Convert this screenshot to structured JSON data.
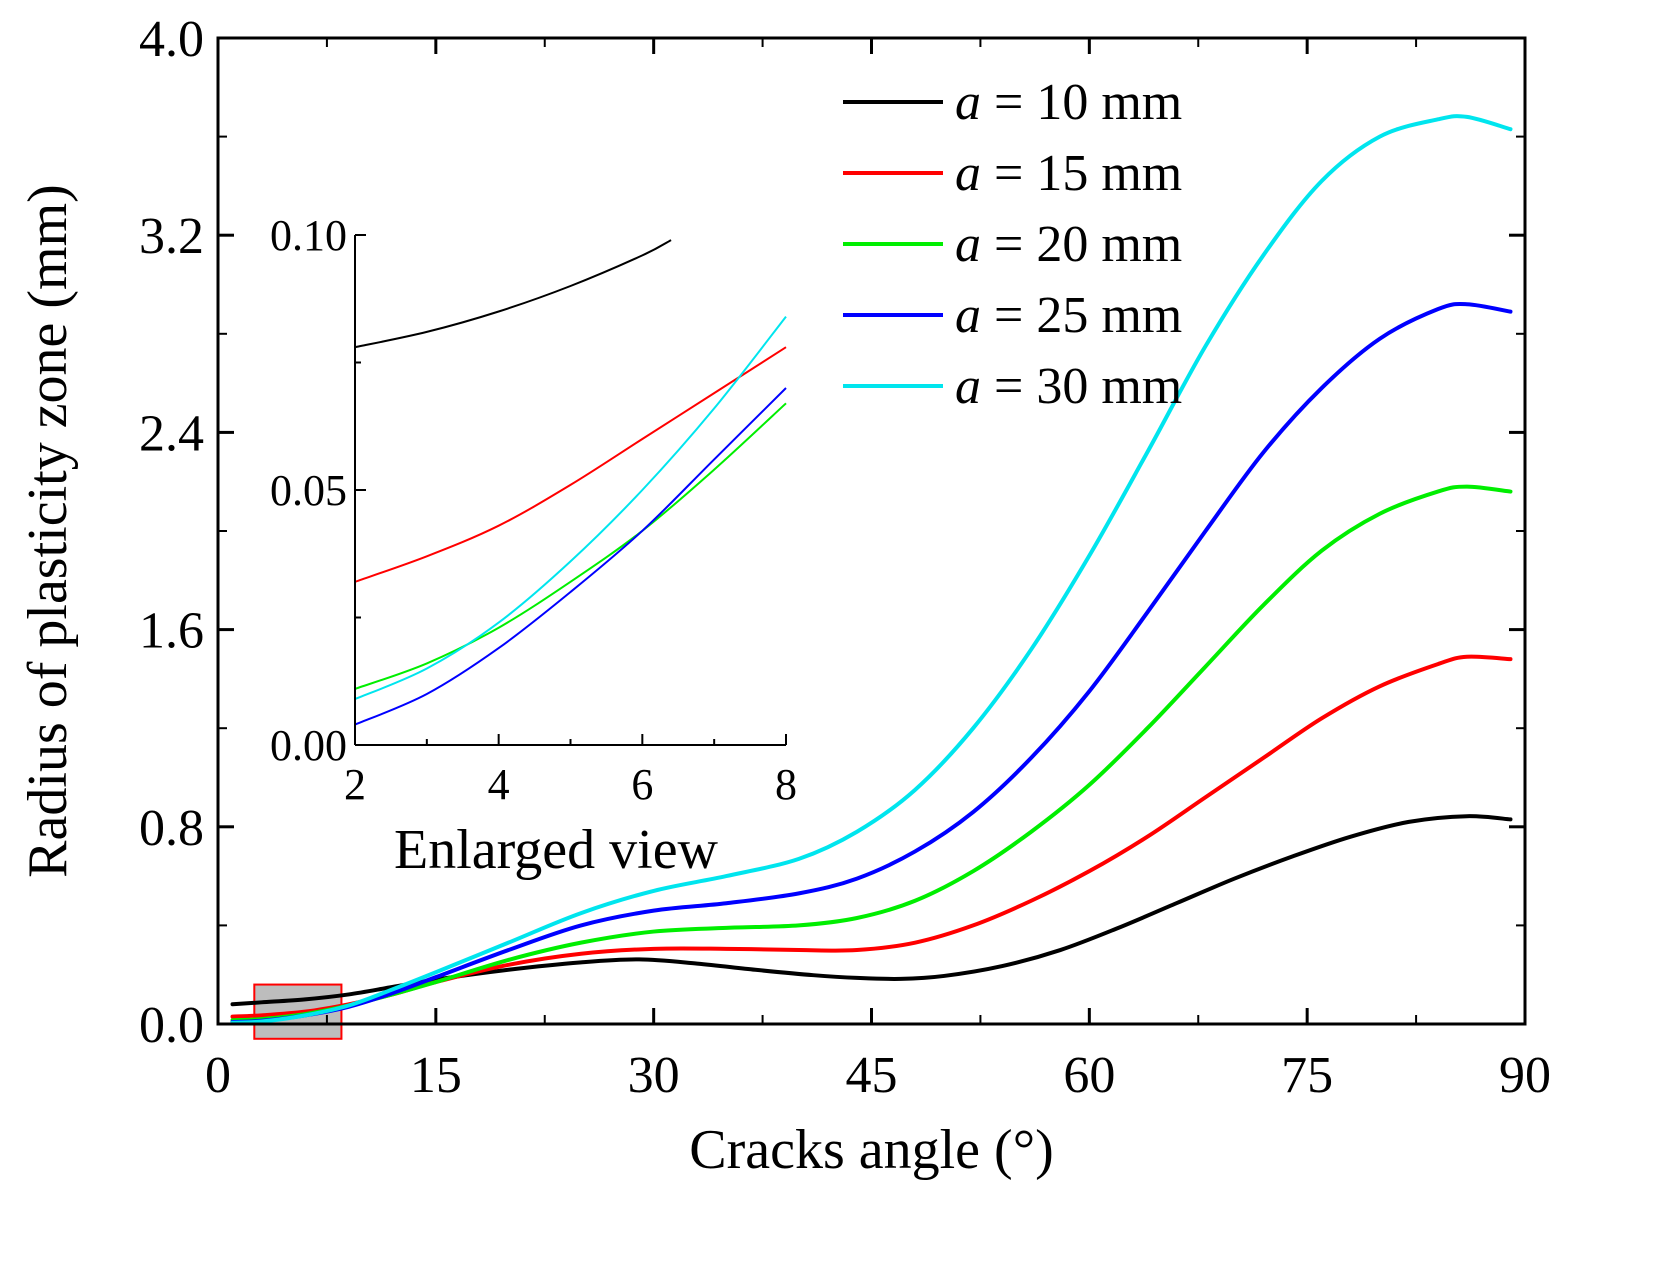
{
  "chart_data": {
    "type": "line",
    "xlabel": "Cracks angle (°)",
    "ylabel": "Radius of plasticity zone (mm)",
    "xlim": [
      0,
      90
    ],
    "ylim": [
      0,
      4.0
    ],
    "x_ticks": [
      "0",
      "15",
      "30",
      "45",
      "60",
      "75",
      "90"
    ],
    "y_ticks": [
      "0.0",
      "0.8",
      "1.6",
      "2.4",
      "3.2",
      "4.0"
    ],
    "legend_position": "top-right",
    "highlight_box": {
      "x_range": [
        2.5,
        8.5
      ],
      "y_range": [
        -0.06,
        0.16
      ],
      "note": "region shown in enlarged view"
    },
    "series": [
      {
        "name": "a = 10 mm",
        "var": "a",
        "rest": " = 10 mm",
        "color": "#000000",
        "points": [
          [
            1,
            0.08
          ],
          [
            3,
            0.088
          ],
          [
            6,
            0.1
          ],
          [
            9,
            0.12
          ],
          [
            12,
            0.15
          ],
          [
            15,
            0.18
          ],
          [
            20,
            0.22
          ],
          [
            25,
            0.25
          ],
          [
            29,
            0.262
          ],
          [
            33,
            0.245
          ],
          [
            37,
            0.22
          ],
          [
            41,
            0.198
          ],
          [
            44,
            0.187
          ],
          [
            47,
            0.183
          ],
          [
            50,
            0.195
          ],
          [
            54,
            0.235
          ],
          [
            58,
            0.3
          ],
          [
            62,
            0.39
          ],
          [
            66,
            0.49
          ],
          [
            70,
            0.59
          ],
          [
            74,
            0.68
          ],
          [
            78,
            0.76
          ],
          [
            82,
            0.82
          ],
          [
            86,
            0.843
          ],
          [
            89,
            0.83
          ]
        ]
      },
      {
        "name": "a = 15 mm",
        "var": "a",
        "rest": " = 15 mm",
        "color": "#ff0000",
        "points": [
          [
            1,
            0.03
          ],
          [
            3,
            0.035
          ],
          [
            6,
            0.05
          ],
          [
            9,
            0.08
          ],
          [
            12,
            0.12
          ],
          [
            15,
            0.17
          ],
          [
            20,
            0.24
          ],
          [
            25,
            0.285
          ],
          [
            30,
            0.305
          ],
          [
            35,
            0.305
          ],
          [
            40,
            0.3
          ],
          [
            44,
            0.3
          ],
          [
            48,
            0.33
          ],
          [
            52,
            0.4
          ],
          [
            56,
            0.5
          ],
          [
            60,
            0.62
          ],
          [
            64,
            0.76
          ],
          [
            68,
            0.92
          ],
          [
            72,
            1.08
          ],
          [
            76,
            1.24
          ],
          [
            80,
            1.37
          ],
          [
            84,
            1.46
          ],
          [
            86,
            1.49
          ],
          [
            89,
            1.48
          ]
        ]
      },
      {
        "name": "a = 20 mm",
        "var": "a",
        "rest": " = 20 mm",
        "color": "#00ee00",
        "points": [
          [
            1,
            0.015
          ],
          [
            3,
            0.02
          ],
          [
            6,
            0.04
          ],
          [
            9,
            0.075
          ],
          [
            12,
            0.12
          ],
          [
            15,
            0.17
          ],
          [
            20,
            0.26
          ],
          [
            25,
            0.33
          ],
          [
            30,
            0.375
          ],
          [
            35,
            0.39
          ],
          [
            40,
            0.4
          ],
          [
            44,
            0.43
          ],
          [
            48,
            0.5
          ],
          [
            52,
            0.62
          ],
          [
            56,
            0.78
          ],
          [
            60,
            0.97
          ],
          [
            64,
            1.2
          ],
          [
            68,
            1.45
          ],
          [
            72,
            1.7
          ],
          [
            76,
            1.92
          ],
          [
            80,
            2.07
          ],
          [
            84,
            2.16
          ],
          [
            86,
            2.18
          ],
          [
            89,
            2.16
          ]
        ]
      },
      {
        "name": "a = 25 mm",
        "var": "a",
        "rest": " = 25 mm",
        "color": "#0000ff",
        "points": [
          [
            1,
            0.008
          ],
          [
            3,
            0.013
          ],
          [
            6,
            0.035
          ],
          [
            9,
            0.07
          ],
          [
            12,
            0.125
          ],
          [
            15,
            0.19
          ],
          [
            20,
            0.3
          ],
          [
            25,
            0.4
          ],
          [
            30,
            0.46
          ],
          [
            35,
            0.49
          ],
          [
            40,
            0.53
          ],
          [
            44,
            0.59
          ],
          [
            48,
            0.7
          ],
          [
            52,
            0.86
          ],
          [
            56,
            1.08
          ],
          [
            60,
            1.35
          ],
          [
            64,
            1.67
          ],
          [
            68,
            2.0
          ],
          [
            72,
            2.32
          ],
          [
            76,
            2.58
          ],
          [
            80,
            2.78
          ],
          [
            84,
            2.9
          ],
          [
            86,
            2.92
          ],
          [
            89,
            2.89
          ]
        ]
      },
      {
        "name": "a = 30 mm",
        "var": "a",
        "rest": " = 30 mm",
        "color": "#00e5ee",
        "points": [
          [
            1,
            0.005
          ],
          [
            3,
            0.01
          ],
          [
            6,
            0.035
          ],
          [
            9,
            0.075
          ],
          [
            12,
            0.14
          ],
          [
            15,
            0.21
          ],
          [
            20,
            0.33
          ],
          [
            25,
            0.45
          ],
          [
            30,
            0.54
          ],
          [
            35,
            0.6
          ],
          [
            40,
            0.67
          ],
          [
            44,
            0.78
          ],
          [
            48,
            0.95
          ],
          [
            52,
            1.2
          ],
          [
            56,
            1.52
          ],
          [
            60,
            1.9
          ],
          [
            64,
            2.32
          ],
          [
            68,
            2.75
          ],
          [
            72,
            3.12
          ],
          [
            76,
            3.42
          ],
          [
            80,
            3.6
          ],
          [
            84,
            3.67
          ],
          [
            86,
            3.68
          ],
          [
            89,
            3.63
          ]
        ]
      }
    ],
    "inset": {
      "label": "Enlarged view",
      "xlim": [
        2,
        8
      ],
      "ylim": [
        0.0,
        0.1
      ],
      "x_ticks": [
        "2",
        "4",
        "6",
        "8"
      ],
      "y_ticks": [
        "0.00",
        "0.05",
        "0.10"
      ],
      "series": [
        {
          "name": "a = 10 mm",
          "color": "#000000",
          "points": [
            [
              2,
              0.078
            ],
            [
              3,
              0.081
            ],
            [
              4,
              0.085
            ],
            [
              5,
              0.09
            ],
            [
              6,
              0.096
            ],
            [
              6.4,
              0.099
            ]
          ]
        },
        {
          "name": "a = 15 mm",
          "color": "#ff0000",
          "points": [
            [
              2,
              0.032
            ],
            [
              3,
              0.037
            ],
            [
              4,
              0.043
            ],
            [
              5,
              0.051
            ],
            [
              6,
              0.06
            ],
            [
              7,
              0.069
            ],
            [
              8,
              0.078
            ]
          ]
        },
        {
          "name": "a = 20 mm",
          "color": "#00ee00",
          "points": [
            [
              2,
              0.011
            ],
            [
              3,
              0.016
            ],
            [
              4,
              0.023
            ],
            [
              5,
              0.032
            ],
            [
              6,
              0.042
            ],
            [
              7,
              0.054
            ],
            [
              8,
              0.067
            ]
          ]
        },
        {
          "name": "a = 25 mm",
          "color": "#0000ff",
          "points": [
            [
              2,
              0.004
            ],
            [
              3,
              0.01
            ],
            [
              4,
              0.019
            ],
            [
              5,
              0.03
            ],
            [
              6,
              0.042
            ],
            [
              7,
              0.056
            ],
            [
              8,
              0.07
            ]
          ]
        },
        {
          "name": "a = 30 mm",
          "color": "#00e5ee",
          "points": [
            [
              2,
              0.009
            ],
            [
              3,
              0.015
            ],
            [
              4,
              0.024
            ],
            [
              5,
              0.036
            ],
            [
              6,
              0.05
            ],
            [
              7,
              0.066
            ],
            [
              8,
              0.084
            ]
          ]
        }
      ]
    }
  }
}
